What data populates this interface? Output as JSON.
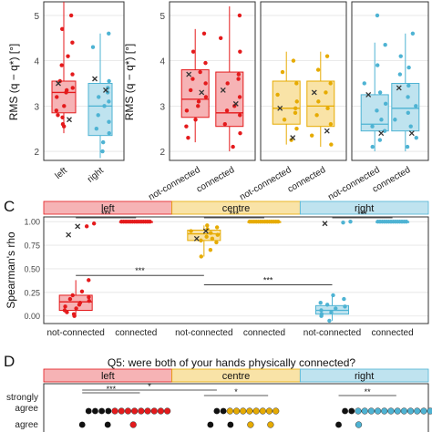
{
  "colors": {
    "left": "#e41a1c",
    "left_fill": "#f6b3b5",
    "centre": "#e6ab02",
    "centre_fill": "#f9e3a7",
    "right": "#4eb3d3",
    "right_fill": "#bfe3ef",
    "sig_line": "#222222",
    "grid": "#e4e4e4"
  },
  "panel_b": {
    "ylabel": "RMS (q − q*) [°]",
    "yticks": [
      "2",
      "3",
      "4",
      "5"
    ],
    "left_panel": {
      "categories": [
        "left",
        "right"
      ]
    },
    "right_panel": {
      "categories": [
        "not-connected",
        "connected",
        "not-connected",
        "connected",
        "not-connected",
        "connected"
      ]
    }
  },
  "panel_c": {
    "letter": "C",
    "ylabel": "Spearman's rho",
    "strips": [
      "left",
      "centre",
      "right"
    ],
    "yticks": [
      "0.00",
      "0.25",
      "0.50",
      "0.75",
      "1.00"
    ],
    "xticks": [
      "not-connected",
      "connected"
    ],
    "sig": [
      "***",
      "***",
      "***",
      "***",
      "***"
    ]
  },
  "panel_d": {
    "letter": "D",
    "title": "Q5: were both of your hands physically connected?",
    "strips": [
      "left",
      "centre",
      "right"
    ],
    "ylabels": [
      "strongly agree",
      "agree"
    ],
    "ylabel_line1": "strongly",
    "ylabel_line2": "agree",
    "ylabel_agree": "agree",
    "sig": [
      "***",
      "*",
      "*",
      "**"
    ]
  },
  "chart_data": [
    {
      "type": "box",
      "ylabel": "RMS (q − q*) [°]",
      "ylim": [
        1.8,
        5.3
      ],
      "categories": [
        "left",
        "right"
      ],
      "boxes": [
        {
          "name": "left",
          "q1": 2.85,
          "median": 3.3,
          "q3": 3.55,
          "whisker_low": 2.4,
          "whisker_high": 5.3
        },
        {
          "name": "right",
          "q1": 2.35,
          "median": 3.0,
          "q3": 3.5,
          "whisker_low": 1.85,
          "whisker_high": 4.6
        }
      ],
      "points": {
        "left": [
          2.55,
          2.6,
          2.75,
          2.8,
          2.9,
          3.0,
          3.2,
          3.3,
          3.35,
          3.4,
          3.55,
          3.7,
          3.9,
          4.1,
          4.4,
          4.7,
          5.0
        ],
        "right": [
          2.0,
          2.2,
          2.4,
          2.5,
          2.65,
          2.8,
          3.0,
          3.1,
          3.2,
          3.3,
          3.4,
          3.55,
          4.3,
          4.6
        ]
      },
      "means": {
        "left": [
          2.7,
          3.5
        ],
        "right": [
          3.35,
          3.6
        ]
      }
    },
    {
      "type": "box",
      "ylim": [
        1.8,
        5.3
      ],
      "groups": [
        "left",
        "centre",
        "right"
      ],
      "categories": [
        "not-connected",
        "connected"
      ],
      "boxes": [
        {
          "group": "left",
          "name": "not-connected",
          "q1": 2.75,
          "median": 3.15,
          "q3": 3.8,
          "whisker_low": 2.2,
          "whisker_high": 4.7
        },
        {
          "group": "left",
          "name": "connected",
          "q1": 2.55,
          "median": 2.85,
          "q3": 3.75,
          "whisker_low": 2.0,
          "whisker_high": 5.2
        },
        {
          "group": "centre",
          "name": "not-connected",
          "q1": 2.6,
          "median": 2.95,
          "q3": 3.55,
          "whisker_low": 2.15,
          "whisker_high": 4.2
        },
        {
          "group": "centre",
          "name": "connected",
          "q1": 2.55,
          "median": 3.0,
          "q3": 3.55,
          "whisker_low": 2.1,
          "whisker_high": 4.2
        },
        {
          "group": "right",
          "name": "not-connected",
          "q1": 2.45,
          "median": 2.6,
          "q3": 3.25,
          "whisker_low": 2.0,
          "whisker_high": 4.4
        },
        {
          "group": "right",
          "name": "connected",
          "q1": 2.45,
          "median": 2.95,
          "q3": 3.5,
          "whisker_low": 2.0,
          "whisker_high": 4.6
        }
      ],
      "points": {
        "left_nc": [
          2.3,
          2.55,
          2.7,
          2.9,
          3.0,
          3.1,
          3.2,
          3.35,
          3.5,
          3.6,
          3.75,
          3.95,
          4.2,
          4.6
        ],
        "left_c": [
          2.1,
          2.4,
          2.6,
          2.8,
          2.9,
          3.0,
          3.2,
          3.5,
          3.6,
          3.7,
          4.2,
          4.5,
          5.0
        ],
        "centre_nc": [
          2.25,
          2.5,
          2.7,
          2.85,
          2.95,
          3.1,
          3.25,
          3.5,
          3.75,
          4.0
        ],
        "centre_c": [
          2.15,
          2.35,
          2.6,
          2.8,
          2.95,
          3.1,
          3.3,
          3.5,
          3.8,
          4.1
        ],
        "right_nc": [
          2.1,
          2.25,
          2.45,
          2.55,
          2.7,
          2.9,
          3.05,
          3.3,
          3.5,
          3.9,
          4.35,
          5.0
        ],
        "right_c": [
          2.1,
          2.3,
          2.55,
          2.7,
          2.85,
          3.0,
          3.2,
          3.45,
          3.7,
          3.85,
          4.1,
          4.6
        ]
      },
      "means": {
        "left_nc": [
          3.3,
          3.7
        ],
        "left_c": [
          3.05,
          3.35
        ],
        "centre_nc": [
          2.3,
          2.95
        ],
        "centre_c": [
          2.45,
          3.3
        ],
        "right_nc": [
          2.4,
          3.25
        ],
        "right_c": [
          2.4,
          3.4
        ]
      }
    },
    {
      "type": "box",
      "title": "",
      "ylabel": "Spearman's rho",
      "ylim": [
        -0.08,
        1.05
      ],
      "groups": [
        "left",
        "centre",
        "right"
      ],
      "categories": [
        "not-connected",
        "connected"
      ],
      "boxes": [
        {
          "group": "left",
          "name": "not-connected",
          "q1": 0.06,
          "median": 0.15,
          "q3": 0.22,
          "whisker_low": 0.0,
          "whisker_high": 0.38
        },
        {
          "group": "left",
          "name": "connected",
          "q1": 0.995,
          "median": 1.0,
          "q3": 1.0,
          "whisker_low": 0.99,
          "whisker_high": 1.0
        },
        {
          "group": "centre",
          "name": "not-connected",
          "q1": 0.8,
          "median": 0.87,
          "q3": 0.91,
          "whisker_low": 0.63,
          "whisker_high": 0.96
        },
        {
          "group": "centre",
          "name": "connected",
          "q1": 0.995,
          "median": 1.0,
          "q3": 1.0,
          "whisker_low": 0.99,
          "whisker_high": 1.0
        },
        {
          "group": "right",
          "name": "not-connected",
          "q1": 0.02,
          "median": 0.06,
          "q3": 0.11,
          "whisker_low": -0.05,
          "whisker_high": 0.22
        },
        {
          "group": "right",
          "name": "connected",
          "q1": 0.995,
          "median": 1.0,
          "q3": 1.0,
          "whisker_low": 0.99,
          "whisker_high": 1.0
        }
      ],
      "points": {
        "left_nc": [
          0.0,
          0.02,
          0.04,
          0.06,
          0.08,
          0.1,
          0.12,
          0.14,
          0.16,
          0.18,
          0.2,
          0.22,
          0.26,
          0.38
        ],
        "centre_nc": [
          0.63,
          0.7,
          0.78,
          0.8,
          0.82,
          0.84,
          0.86,
          0.88,
          0.9,
          0.92,
          0.94,
          0.96
        ],
        "right_nc": [
          -0.05,
          0.0,
          0.02,
          0.04,
          0.06,
          0.08,
          0.1,
          0.12,
          0.14,
          0.18,
          0.22
        ]
      },
      "outliers": {
        "left_nc": [
          0.95,
          0.98
        ],
        "right_nc": [
          0.99,
          1.0
        ]
      },
      "means": {
        "left_nc": [
          0.86,
          0.95
        ],
        "centre_nc": [
          0.82,
          0.9
        ],
        "right_nc": [
          0.98
        ]
      },
      "significance": [
        {
          "label": "***",
          "between": "left not-connected vs connected"
        },
        {
          "label": "***",
          "between": "centre not-connected vs connected"
        },
        {
          "label": "***",
          "between": "right not-connected vs connected"
        },
        {
          "label": "***",
          "between": "left vs centre not-connected"
        },
        {
          "label": "***",
          "between": "centre vs right not-connected"
        }
      ]
    },
    {
      "type": "dot",
      "title": "Q5: were both of your hands physically connected?",
      "groups": [
        "left",
        "centre",
        "right"
      ],
      "rows": [
        "strongly agree",
        "agree"
      ],
      "dots": {
        "left": {
          "strongly agree": {
            "black": 4,
            "colored": 9
          },
          "agree": {
            "black": 2,
            "colored": 1
          }
        },
        "centre": {
          "strongly agree": {
            "black": 2,
            "colored": 8
          },
          "agree": {
            "black": 2,
            "colored": 2
          }
        },
        "right": {
          "strongly agree": {
            "black": 2,
            "colored": 12
          },
          "agree": {
            "black": 1,
            "colored": 1
          }
        }
      },
      "significance": [
        "***",
        "*",
        "*",
        "**"
      ]
    }
  ]
}
